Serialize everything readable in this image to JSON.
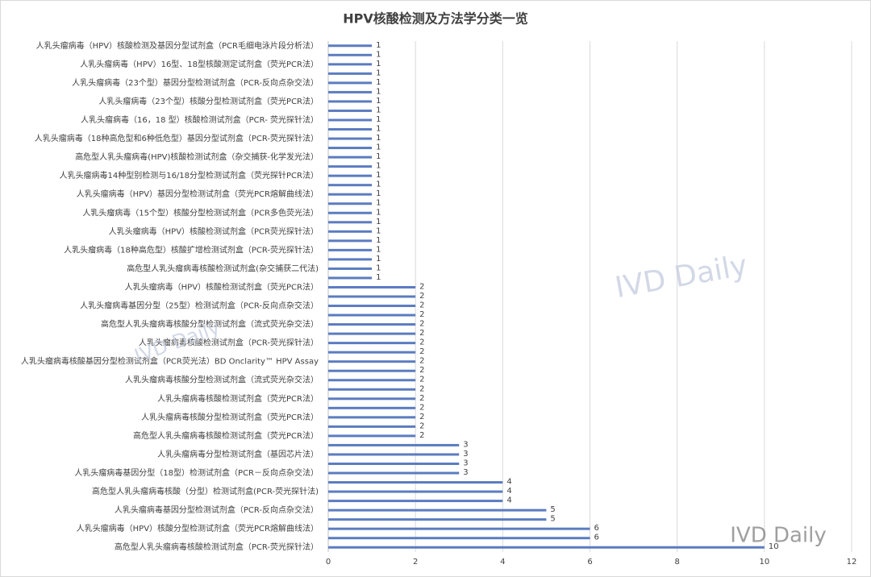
{
  "chart_data": {
    "type": "barh",
    "title": "HPV核酸检测及方法学分类一览",
    "categories": [
      "人乳头瘤病毒（HPV）核酸检测及基因分型试剂盒（PCR毛细电泳片段分析法）",
      null,
      "人乳头瘤病毒（HPV）16型、18型核酸测定试剂盒（荧光PCR法）",
      null,
      "人乳头瘤病毒（23个型）基因分型检测试剂盒（PCR-反向点杂交法）",
      null,
      "人乳头瘤病毒（23个型）核酸分型检测试剂盒（荧光PCR法）",
      null,
      "人乳头瘤病毒（16，18 型）核酸检测试剂盒（PCR- 荧光探针法）",
      null,
      "人乳头瘤病毒（18种高危型和6种低危型）基因分型试剂盒（PCR-荧光探针法）",
      null,
      "高危型人乳头瘤病毒(HPV)核酸检测试剂盒（杂交捕获-化学发光法）",
      null,
      "人乳头瘤病毒14种型别检测与16/18分型检测试剂盒（荧光探针PCR法）",
      null,
      "人乳头瘤病毒（HPV）基因分型检测试剂盒（荧光PCR熔解曲线法）",
      null,
      "人乳头瘤病毒（15个型）核酸分型检测试剂盒（PCR多色荧光法）",
      null,
      "人乳头瘤病毒（HPV）核酸检测试剂盒（PCR荧光探针法）",
      null,
      "人乳头瘤病毒（18种高危型）核酸扩增检测试剂盒（PCR-荧光探针法）",
      null,
      "高危型人乳头瘤病毒核酸检测试剂盒(杂交捕获二代法)",
      null,
      "人乳头瘤病毒（HPV）核酸检测试剂盒（荧光PCR法）",
      null,
      "人乳头瘤病毒基因分型（25型）检测试剂盒（PCR-反向点杂交法）",
      null,
      "高危型人乳头瘤病毒核酸分型检测试剂盒（流式荧光杂交法）",
      null,
      "人乳头瘤病毒核酸检测试剂盒（PCR-荧光探针法）",
      null,
      "人乳头瘤病毒核酸基因分型检测试剂盒（PCR荧光法）BD Onclarity™ HPV Assay",
      null,
      "人乳头瘤病毒核酸分型检测试剂盒（流式荧光杂交法）",
      null,
      "人乳头瘤病毒核酸检测试剂盒（荧光PCR法）",
      null,
      "人乳头瘤病毒核酸分型检测试剂盒（荧光PCR法）",
      null,
      "高危型人乳头瘤病毒核酸检测试剂盒（荧光PCR法）",
      null,
      "人乳头瘤病毒分型检测试剂盒（基因芯片法）",
      null,
      "人乳头瘤病毒基因分型（18型）检测试剂盒（PCR－反向点杂交法）",
      null,
      "高危型人乳头瘤病毒核酸（分型）检测试剂盒(PCR-荧光探针法)",
      null,
      "人乳头瘤病毒基因分型检测试剂盒（PCR-反向点杂交法）",
      null,
      "人乳头瘤病毒（HPV）核酸分型检测试剂盒（荧光PCR熔解曲线法）",
      null,
      "高危型人乳头瘤病毒核酸检测试剂盒（PCR-荧光探针法）"
    ],
    "values": [
      1,
      1,
      1,
      1,
      1,
      1,
      1,
      1,
      1,
      1,
      1,
      1,
      1,
      1,
      1,
      1,
      1,
      1,
      1,
      1,
      1,
      1,
      1,
      1,
      1,
      1,
      2,
      2,
      2,
      2,
      2,
      2,
      2,
      2,
      2,
      2,
      2,
      2,
      2,
      2,
      2,
      2,
      2,
      3,
      3,
      3,
      3,
      4,
      4,
      4,
      5,
      5,
      6,
      6,
      10
    ],
    "color": "#5b7cc0",
    "xlim": [
      0,
      12
    ],
    "xticks": [
      0,
      2,
      4,
      6,
      8,
      10,
      12
    ],
    "grid": true,
    "watermarks": [
      "IVD Daily",
      "IVD Daily",
      "IVD Daily"
    ]
  }
}
